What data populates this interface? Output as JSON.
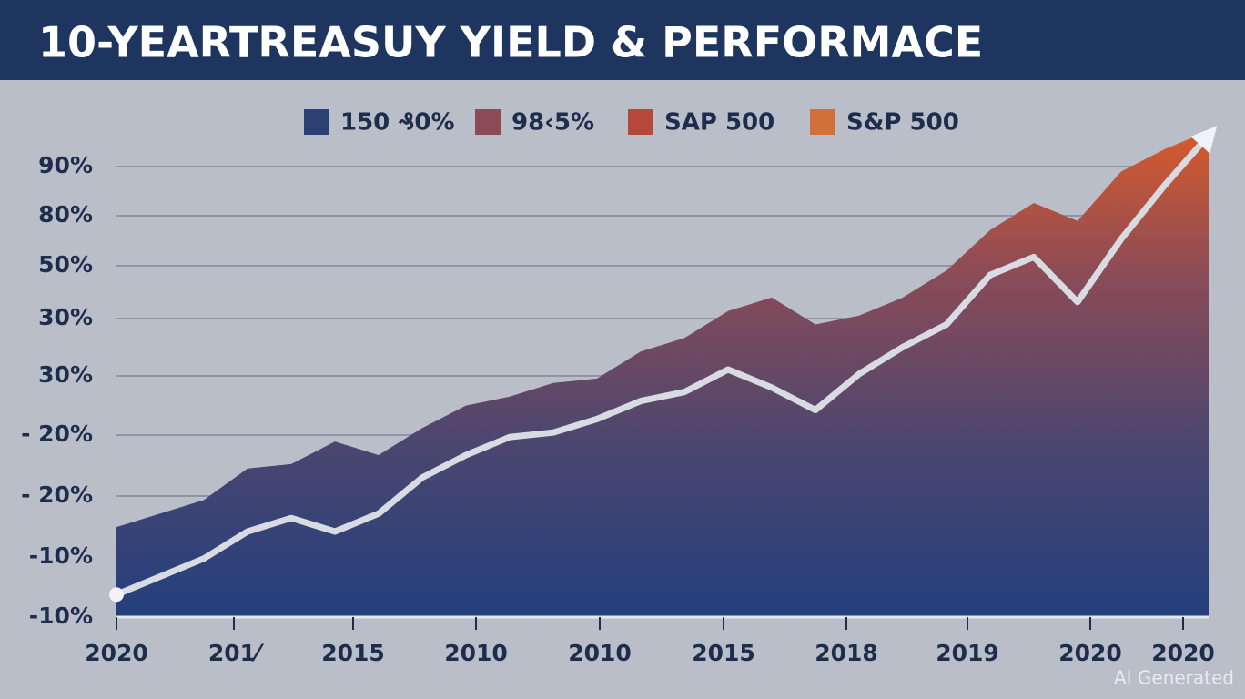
{
  "chart_data": {
    "type": "area",
    "title": "10-YEARTREASUY YIELD & PERFORMACE",
    "legend": [
      {
        "label": "150 ₰0%",
        "color": "#2c4173"
      },
      {
        "label": "98‹5%",
        "color": "#8a4b55"
      },
      {
        "label": "SAP 500",
        "color": "#b5483a"
      },
      {
        "label": "S&P 500",
        "color": "#d2703a"
      }
    ],
    "y_axis_labels": [
      "90%",
      "80%",
      "50%",
      "30%",
      "30%",
      "- 20%",
      "- 20%",
      "-10%",
      "-10%"
    ],
    "x_axis_labels": [
      "2020",
      "201⁄",
      "2015",
      "2010",
      "2010",
      "2015",
      "2018",
      "2019",
      "2020",
      "2020"
    ],
    "ylim": [
      -10,
      100
    ],
    "series": [
      {
        "kind": "area",
        "values": [
          10,
          13,
          16,
          23,
          24,
          29,
          26,
          32,
          37,
          39,
          42,
          43,
          49,
          52,
          58,
          61,
          55,
          57,
          61,
          67,
          76,
          82,
          78,
          89,
          94,
          98
        ]
      },
      {
        "kind": "line",
        "color": "#d8dbe2",
        "values": [
          -5,
          -1,
          3,
          9,
          12,
          9,
          13,
          21,
          26,
          30,
          31,
          34,
          38,
          40,
          45,
          41,
          36,
          44,
          50,
          55,
          66,
          70,
          60,
          74,
          86,
          97
        ]
      }
    ],
    "watermark": "AI Generated"
  }
}
